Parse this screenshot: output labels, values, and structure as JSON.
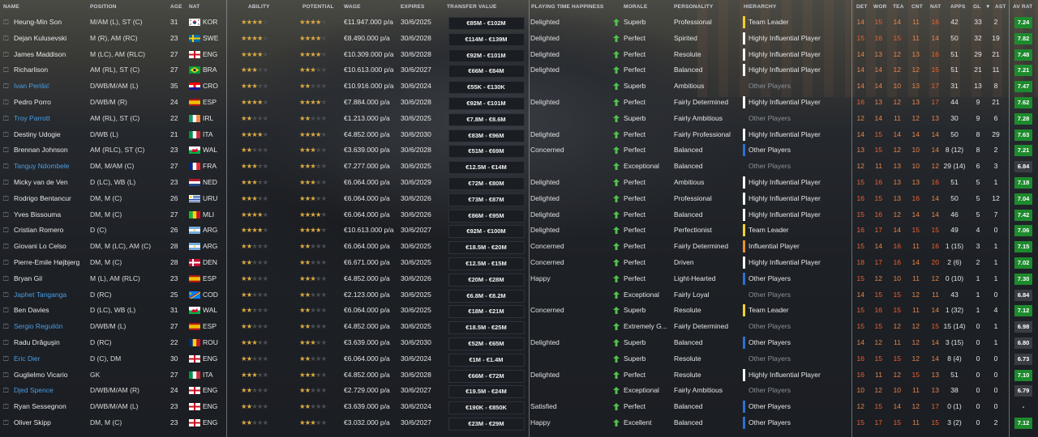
{
  "headers": {
    "name": "NAME",
    "position": "POSITION",
    "age": "AGE",
    "nat": "NAT",
    "ability": "ABILITY",
    "potential": "POTENTIAL",
    "wage": "WAGE",
    "expires": "EXPIRES",
    "transfer_value": "TRANSFER VALUE",
    "happiness": "PLAYING TIME HAPPINESS",
    "morale": "MORALE",
    "personality": "PERSONALITY",
    "hierarchy": "HIERARCHY",
    "det": "DET",
    "wor": "WOR",
    "tea": "TEA",
    "cnt": "CNT",
    "natc": "NAT",
    "apps": "APPS",
    "gl": "GL",
    "sort": "▼",
    "ast": "AST",
    "avrat": "AV RAT"
  },
  "colors": {
    "leader": "#f0d22a",
    "highly": "#ffffff",
    "influential": "#e8912d",
    "other": "#2f6fd0",
    "rat_green": "#1e8a2e",
    "rat_dark": "#3a3d42"
  },
  "players": [
    {
      "name": "Heung-Min Son",
      "pos": "M/AM (L), ST (C)",
      "age": "31",
      "flag": "kor",
      "nat": "KOR",
      "abil": 4,
      "pot": 4,
      "wage": "€11.947.000 p/a",
      "exp": "30/6/2025",
      "tv": "€85M - €102M",
      "happy": "Delighted",
      "mor": "Superb",
      "pers": "Professional",
      "hier": "Team Leader",
      "h": "leader",
      "det": "14",
      "wor": "15",
      "tea": "14",
      "cnt": "11",
      "natg": "16",
      "apps": "42",
      "gl": "33",
      "ast": "2",
      "rat": "7.24",
      "loan": false
    },
    {
      "name": "Dejan Kulusevski",
      "pos": "M (R), AM (RC)",
      "age": "23",
      "flag": "swe",
      "nat": "SWE",
      "abil": 4,
      "pot": 4,
      "wage": "€8.490.000 p/a",
      "exp": "30/6/2028",
      "tv": "€114M - €139M",
      "happy": "Delighted",
      "mor": "Perfect",
      "pers": "Spirited",
      "hier": "Highly Influential Player",
      "h": "highly",
      "det": "15",
      "wor": "16",
      "tea": "15",
      "cnt": "11",
      "natg": "14",
      "apps": "50",
      "gl": "32",
      "ast": "19",
      "rat": "7.82",
      "loan": false
    },
    {
      "name": "James Maddison",
      "pos": "M (LC), AM (RLC)",
      "age": "27",
      "flag": "eng",
      "nat": "ENG",
      "abil": 4,
      "pot": 4,
      "wage": "€10.309.000 p/a",
      "exp": "30/6/2028",
      "tv": "€92M - €101M",
      "happy": "Delighted",
      "mor": "Perfect",
      "pers": "Resolute",
      "hier": "Highly Influential Player",
      "h": "highly",
      "det": "14",
      "wor": "13",
      "tea": "12",
      "cnt": "13",
      "natg": "16",
      "apps": "51",
      "gl": "29",
      "ast": "21",
      "rat": "7.48",
      "loan": false
    },
    {
      "name": "Richarlison",
      "pos": "AM (RL), ST (C)",
      "age": "27",
      "flag": "bra",
      "nat": "BRA",
      "abil": 3,
      "pot": 3,
      "wage": "€10.613.000 p/a",
      "exp": "30/6/2027",
      "tv": "€66M - €84M",
      "happy": "Delighted",
      "mor": "Perfect",
      "pers": "Balanced",
      "hier": "Highly Influential Player",
      "h": "highly",
      "det": "14",
      "wor": "14",
      "tea": "12",
      "cnt": "12",
      "natg": "15",
      "apps": "51",
      "gl": "21",
      "ast": "11",
      "rat": "7.21",
      "loan": false
    },
    {
      "name": "Ivan Perišić",
      "pos": "D/WB/M/AM (L)",
      "age": "35",
      "flag": "cro",
      "nat": "CRO",
      "abil": 3,
      "pot": 2,
      "wage": "€10.916.000 p/a",
      "exp": "30/6/2024",
      "tv": "€55K - €130K",
      "happy": "",
      "mor": "Superb",
      "pers": "Ambitious",
      "hier": "Other Players",
      "h": "other-dim",
      "det": "14",
      "wor": "14",
      "tea": "10",
      "cnt": "13",
      "natg": "17",
      "apps": "31",
      "gl": "13",
      "ast": "8",
      "rat": "7.47",
      "loan": true
    },
    {
      "name": "Pedro Porro",
      "pos": "D/WB/M (R)",
      "age": "24",
      "flag": "esp",
      "nat": "ESP",
      "abil": 4,
      "pot": 4,
      "wage": "€7.884.000 p/a",
      "exp": "30/6/2028",
      "tv": "€92M - €101M",
      "happy": "Delighted",
      "mor": "Perfect",
      "pers": "Fairly Determined",
      "hier": "Highly Influential Player",
      "h": "highly",
      "det": "16",
      "wor": "13",
      "tea": "12",
      "cnt": "13",
      "natg": "17",
      "apps": "44",
      "gl": "9",
      "ast": "21",
      "rat": "7.62",
      "loan": false
    },
    {
      "name": "Troy Parrott",
      "pos": "AM (RL), ST (C)",
      "age": "22",
      "flag": "irl",
      "nat": "IRL",
      "abil": 2,
      "pot": 2,
      "wage": "€1.213.000 p/a",
      "exp": "30/6/2025",
      "tv": "€7.8M - €8.6M",
      "happy": "",
      "mor": "Superb",
      "pers": "Fairly Ambitious",
      "hier": "Other Players",
      "h": "other-dim",
      "det": "12",
      "wor": "14",
      "tea": "11",
      "cnt": "12",
      "natg": "13",
      "apps": "30",
      "gl": "9",
      "ast": "6",
      "rat": "7.28",
      "loan": true
    },
    {
      "name": "Destiny Udogie",
      "pos": "D/WB (L)",
      "age": "21",
      "flag": "ita",
      "nat": "ITA",
      "abil": 4,
      "pot": 4,
      "wage": "€4.852.000 p/a",
      "exp": "30/6/2030",
      "tv": "€83M - €96M",
      "happy": "Delighted",
      "mor": "Perfect",
      "pers": "Fairly Professional",
      "hier": "Highly Influential Player",
      "h": "highly",
      "det": "14",
      "wor": "15",
      "tea": "14",
      "cnt": "14",
      "natg": "14",
      "apps": "50",
      "gl": "8",
      "ast": "29",
      "rat": "7.63",
      "loan": false
    },
    {
      "name": "Brennan Johnson",
      "pos": "AM (RLC), ST (C)",
      "age": "23",
      "flag": "wal",
      "nat": "WAL",
      "abil": 2,
      "pot": 3,
      "wage": "€3.639.000 p/a",
      "exp": "30/6/2028",
      "tv": "€51M - €69M",
      "happy": "Concerned",
      "mor": "Perfect",
      "pers": "Balanced",
      "hier": "Other Players",
      "h": "other",
      "det": "13",
      "wor": "15",
      "tea": "12",
      "cnt": "10",
      "natg": "14",
      "apps": "8 (12)",
      "gl": "8",
      "ast": "2",
      "rat": "7.21",
      "loan": false
    },
    {
      "name": "Tanguy Ndombele",
      "pos": "DM, M/AM (C)",
      "age": "27",
      "flag": "fra",
      "nat": "FRA",
      "abil": 3,
      "pot": 3,
      "wage": "€7.277.000 p/a",
      "exp": "30/6/2025",
      "tv": "€12.5M - €14M",
      "happy": "",
      "mor": "Exceptional",
      "pers": "Balanced",
      "hier": "Other Players",
      "h": "other-dim",
      "det": "12",
      "wor": "11",
      "tea": "13",
      "cnt": "10",
      "natg": "12",
      "apps": "29 (14)",
      "gl": "6",
      "ast": "3",
      "rat": "6.84",
      "loan": true
    },
    {
      "name": "Micky van de Ven",
      "pos": "D (LC), WB (L)",
      "age": "23",
      "flag": "ned",
      "nat": "NED",
      "abil": 3,
      "pot": 3,
      "wage": "€6.064.000 p/a",
      "exp": "30/6/2029",
      "tv": "€72M - €80M",
      "happy": "Delighted",
      "mor": "Perfect",
      "pers": "Ambitious",
      "hier": "Highly Influential Player",
      "h": "highly",
      "det": "15",
      "wor": "16",
      "tea": "13",
      "cnt": "13",
      "natg": "16",
      "apps": "51",
      "gl": "5",
      "ast": "1",
      "rat": "7.18",
      "loan": false
    },
    {
      "name": "Rodrigo Bentancur",
      "pos": "DM, M (C)",
      "age": "26",
      "flag": "uru",
      "nat": "URU",
      "abil": 3,
      "pot": 3,
      "wage": "€6.064.000 p/a",
      "exp": "30/6/2026",
      "tv": "€73M - €87M",
      "happy": "Delighted",
      "mor": "Perfect",
      "pers": "Professional",
      "hier": "Highly Influential Player",
      "h": "highly",
      "det": "16",
      "wor": "15",
      "tea": "13",
      "cnt": "16",
      "natg": "14",
      "apps": "50",
      "gl": "5",
      "ast": "12",
      "rat": "7.04",
      "loan": false
    },
    {
      "name": "Yves Bissouma",
      "pos": "DM, M (C)",
      "age": "27",
      "flag": "mli",
      "nat": "MLI",
      "abil": 4,
      "pot": 4,
      "wage": "€6.064.000 p/a",
      "exp": "30/6/2026",
      "tv": "€86M - €95M",
      "happy": "Delighted",
      "mor": "Perfect",
      "pers": "Balanced",
      "hier": "Highly Influential Player",
      "h": "highly",
      "det": "15",
      "wor": "16",
      "tea": "12",
      "cnt": "14",
      "natg": "14",
      "apps": "46",
      "gl": "5",
      "ast": "7",
      "rat": "7.42",
      "loan": false
    },
    {
      "name": "Cristian Romero",
      "pos": "D (C)",
      "age": "26",
      "flag": "arg",
      "nat": "ARG",
      "abil": 4,
      "pot": 4,
      "wage": "€10.613.000 p/a",
      "exp": "30/6/2027",
      "tv": "€92M - €100M",
      "happy": "Delighted",
      "mor": "Perfect",
      "pers": "Perfectionist",
      "hier": "Team Leader",
      "h": "leader",
      "det": "16",
      "wor": "17",
      "tea": "14",
      "cnt": "15",
      "natg": "15",
      "apps": "49",
      "gl": "4",
      "ast": "0",
      "rat": "7.06",
      "loan": false
    },
    {
      "name": "Giovani Lo Celso",
      "pos": "DM, M (LC), AM (C)",
      "age": "28",
      "flag": "arg",
      "nat": "ARG",
      "abil": 2,
      "pot": 2,
      "wage": "€6.064.000 p/a",
      "exp": "30/6/2025",
      "tv": "€18.5M - €20M",
      "happy": "Concerned",
      "mor": "Perfect",
      "pers": "Fairly Determined",
      "hier": "Influential Player",
      "h": "influential",
      "det": "15",
      "wor": "14",
      "tea": "16",
      "cnt": "11",
      "natg": "16",
      "apps": "1 (15)",
      "gl": "3",
      "ast": "1",
      "rat": "7.15",
      "loan": false
    },
    {
      "name": "Pierre-Emile Højbjerg",
      "pos": "DM, M (C)",
      "age": "28",
      "flag": "den",
      "nat": "DEN",
      "abil": 2,
      "pot": 2,
      "wage": "€6.671.000 p/a",
      "exp": "30/6/2025",
      "tv": "€12.5M - €15M",
      "happy": "Concerned",
      "mor": "Perfect",
      "pers": "Driven",
      "hier": "Highly Influential Player",
      "h": "highly",
      "det": "18",
      "wor": "17",
      "tea": "16",
      "cnt": "14",
      "natg": "20",
      "apps": "2 (6)",
      "gl": "2",
      "ast": "1",
      "rat": "7.02",
      "loan": false
    },
    {
      "name": "Bryan Gil",
      "pos": "M (L), AM (RLC)",
      "age": "23",
      "flag": "esp",
      "nat": "ESP",
      "abil": 2,
      "pot": 3,
      "wage": "€4.852.000 p/a",
      "exp": "30/6/2026",
      "tv": "€20M - €28M",
      "happy": "Happy",
      "mor": "Perfect",
      "pers": "Light-Hearted",
      "hier": "Other Players",
      "h": "other",
      "det": "15",
      "wor": "12",
      "tea": "10",
      "cnt": "11",
      "natg": "12",
      "apps": "0 (10)",
      "gl": "1",
      "ast": "1",
      "rat": "7.30",
      "loan": false
    },
    {
      "name": "Japhet Tanganga",
      "pos": "D (RC)",
      "age": "25",
      "flag": "cod",
      "nat": "COD",
      "abil": 2,
      "pot": 2,
      "wage": "€2.123.000 p/a",
      "exp": "30/6/2025",
      "tv": "€6.8M - €8.2M",
      "happy": "",
      "mor": "Exceptional",
      "pers": "Fairly Loyal",
      "hier": "Other Players",
      "h": "other-dim",
      "det": "14",
      "wor": "15",
      "tea": "15",
      "cnt": "12",
      "natg": "11",
      "apps": "43",
      "gl": "1",
      "ast": "0",
      "rat": "6.84",
      "loan": true
    },
    {
      "name": "Ben Davies",
      "pos": "D (LC), WB (L)",
      "age": "31",
      "flag": "wal",
      "nat": "WAL",
      "abil": 2,
      "pot": 2,
      "wage": "€6.064.000 p/a",
      "exp": "30/6/2025",
      "tv": "€18M - €21M",
      "happy": "Concerned",
      "mor": "Superb",
      "pers": "Resolute",
      "hier": "Team Leader",
      "h": "leader",
      "det": "15",
      "wor": "16",
      "tea": "15",
      "cnt": "11",
      "natg": "14",
      "apps": "1 (32)",
      "gl": "1",
      "ast": "4",
      "rat": "7.12",
      "loan": false
    },
    {
      "name": "Sergio Reguilón",
      "pos": "D/WB/M (L)",
      "age": "27",
      "flag": "esp",
      "nat": "ESP",
      "abil": 2,
      "pot": 2,
      "wage": "€4.852.000 p/a",
      "exp": "30/6/2025",
      "tv": "€18.5M - €25M",
      "happy": "",
      "mor": "Extremely G...",
      "pers": "Fairly Determined",
      "hier": "Other Players",
      "h": "other-dim",
      "det": "15",
      "wor": "15",
      "tea": "12",
      "cnt": "12",
      "natg": "15",
      "apps": "15 (14)",
      "gl": "0",
      "ast": "1",
      "rat": "6.98",
      "loan": true
    },
    {
      "name": "Radu Drăguşin",
      "pos": "D (RC)",
      "age": "22",
      "flag": "rou",
      "nat": "ROU",
      "abil": 3,
      "pot": 3,
      "wage": "€3.639.000 p/a",
      "exp": "30/6/2030",
      "tv": "€52M - €65M",
      "happy": "Delighted",
      "mor": "Superb",
      "pers": "Balanced",
      "hier": "Other Players",
      "h": "other",
      "det": "14",
      "wor": "12",
      "tea": "11",
      "cnt": "12",
      "natg": "14",
      "apps": "3 (15)",
      "gl": "0",
      "ast": "1",
      "rat": "6.80",
      "loan": false
    },
    {
      "name": "Eric Dier",
      "pos": "D (C), DM",
      "age": "30",
      "flag": "eng",
      "nat": "ENG",
      "abil": 2,
      "pot": 2,
      "wage": "€6.064.000 p/a",
      "exp": "30/6/2024",
      "tv": "€1M - €1.4M",
      "happy": "",
      "mor": "Superb",
      "pers": "Resolute",
      "hier": "Other Players",
      "h": "other-dim",
      "det": "16",
      "wor": "15",
      "tea": "15",
      "cnt": "12",
      "natg": "14",
      "apps": "8 (4)",
      "gl": "0",
      "ast": "0",
      "rat": "6.73",
      "loan": true
    },
    {
      "name": "Guglielmo Vicario",
      "pos": "GK",
      "age": "27",
      "flag": "ita",
      "nat": "ITA",
      "abil": 3,
      "pot": 3,
      "wage": "€4.852.000 p/a",
      "exp": "30/6/2028",
      "tv": "€66M - €72M",
      "happy": "Delighted",
      "mor": "Perfect",
      "pers": "Resolute",
      "hier": "Highly Influential Player",
      "h": "highly",
      "det": "16",
      "wor": "11",
      "tea": "12",
      "cnt": "15",
      "natg": "13",
      "apps": "51",
      "gl": "0",
      "ast": "0",
      "rat": "7.10",
      "loan": false
    },
    {
      "name": "Djed Spence",
      "pos": "D/WB/M/AM (R)",
      "age": "24",
      "flag": "eng",
      "nat": "ENG",
      "abil": 2,
      "pot": 2,
      "wage": "€2.729.000 p/a",
      "exp": "30/6/2027",
      "tv": "€19.5M - €24M",
      "happy": "",
      "mor": "Exceptional",
      "pers": "Fairly Ambitious",
      "hier": "Other Players",
      "h": "other-dim",
      "det": "10",
      "wor": "12",
      "tea": "10",
      "cnt": "11",
      "natg": "13",
      "apps": "38",
      "gl": "0",
      "ast": "0",
      "rat": "6.79",
      "loan": true
    },
    {
      "name": "Ryan Sessegnon",
      "pos": "D/WB/M/AM (L)",
      "age": "23",
      "flag": "eng",
      "nat": "ENG",
      "abil": 2,
      "pot": 2,
      "wage": "€3.639.000 p/a",
      "exp": "30/6/2024",
      "tv": "€190K - €850K",
      "happy": "Satisfied",
      "mor": "Perfect",
      "pers": "Balanced",
      "hier": "Other Players",
      "h": "other",
      "det": "12",
      "wor": "15",
      "tea": "14",
      "cnt": "12",
      "natg": "17",
      "apps": "0 (1)",
      "gl": "0",
      "ast": "0",
      "rat": "-",
      "loan": false
    },
    {
      "name": "Oliver Skipp",
      "pos": "DM, M (C)",
      "age": "23",
      "flag": "eng",
      "nat": "ENG",
      "abil": 2,
      "pot": 3,
      "wage": "€3.032.000 p/a",
      "exp": "30/6/2027",
      "tv": "€23M - €29M",
      "happy": "Happy",
      "mor": "Excellent",
      "pers": "Balanced",
      "hier": "Other Players",
      "h": "other",
      "det": "15",
      "wor": "17",
      "tea": "15",
      "cnt": "11",
      "natg": "15",
      "apps": "3 (2)",
      "gl": "0",
      "ast": "2",
      "rat": "7.12",
      "loan": false
    }
  ]
}
